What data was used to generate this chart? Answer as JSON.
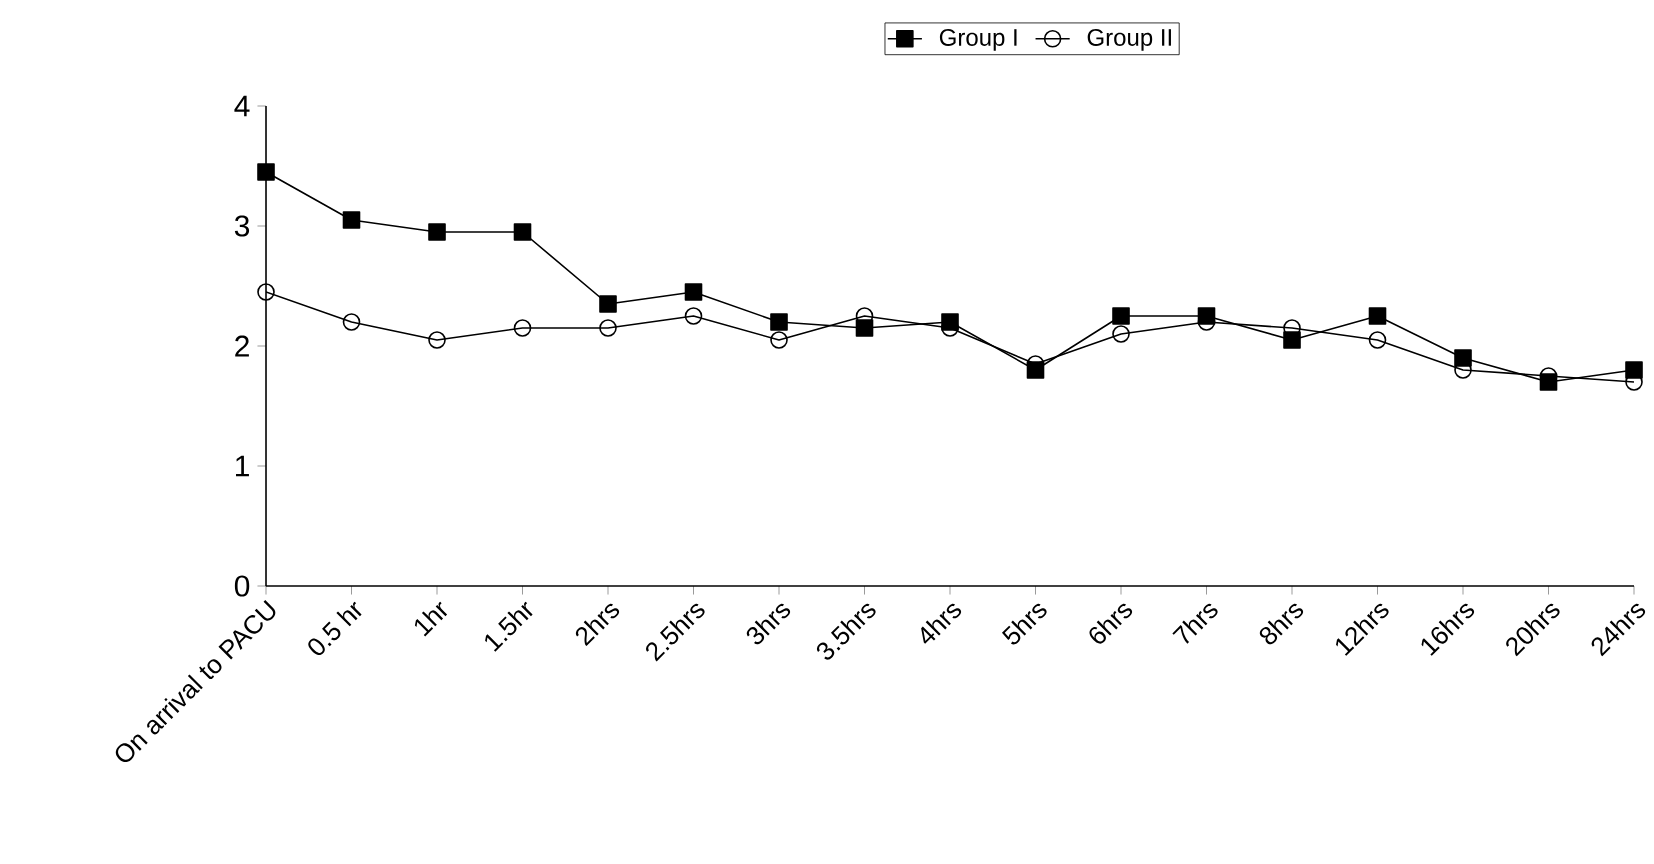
{
  "chart_data": {
    "type": "line",
    "categories": [
      "On arrival to PACU",
      "0.5 hr",
      "1hr",
      "1.5hr",
      "2hrs",
      "2.5hrs",
      "3hrs",
      "3.5hrs",
      "4hrs",
      "5hrs",
      "6hrs",
      "7hrs",
      "8hrs",
      "12hrs",
      "16hrs",
      "20hrs",
      "24hrs"
    ],
    "series": [
      {
        "name": "Group I",
        "color": "#000000",
        "marker": "square",
        "values": [
          3.45,
          3.05,
          2.95,
          2.95,
          2.35,
          2.45,
          2.2,
          2.15,
          2.2,
          1.8,
          2.25,
          2.25,
          2.05,
          2.25,
          1.9,
          1.7,
          1.8
        ]
      },
      {
        "name": "Group II",
        "color": "#000000",
        "marker": "circle",
        "values": [
          2.45,
          2.2,
          2.05,
          2.15,
          2.15,
          2.25,
          2.05,
          2.25,
          2.15,
          1.85,
          2.1,
          2.2,
          2.15,
          2.05,
          1.8,
          1.75,
          1.7
        ]
      }
    ],
    "ylim": [
      0,
      4
    ],
    "yticks": [
      0,
      1,
      2,
      3,
      4
    ],
    "grid": false,
    "legend": "top",
    "line_style": "solid"
  }
}
